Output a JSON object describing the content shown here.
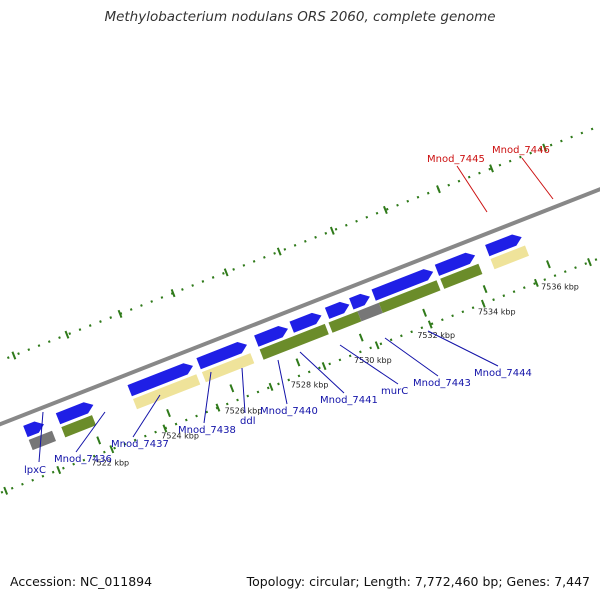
{
  "title": "Methylobacterium nodulans ORS 2060, complete genome",
  "accession_label": "Accession: NC_011894",
  "summary_label": "Topology: circular; Length: 7,772,460 bp; Genes: 7,447",
  "colors": {
    "forward_gene": "#1f1fe6",
    "reverse_gene": "#e60a0a",
    "cyan_feature": "#1ec8cc",
    "olive_feature": "#6b8c2a",
    "yellow_feature": "#efe39a",
    "gray_feature": "#777777",
    "backbone": "#888888",
    "label_blue": "#1212a8",
    "label_red": "#cc1010",
    "tick_green": "#2f7a1a"
  },
  "ticks": [
    {
      "kbp": 7522,
      "label": "7522 kbp"
    },
    {
      "kbp": 7524,
      "label": "7524 kbp"
    },
    {
      "kbp": 7526,
      "label": "7526 kbp"
    },
    {
      "kbp": 7528,
      "label": "7528 kbp"
    },
    {
      "kbp": 7530,
      "label": "7530 kbp"
    },
    {
      "kbp": 7532,
      "label": "7532 kbp"
    },
    {
      "kbp": 7534,
      "label": "7534 kbp"
    },
    {
      "kbp": 7536,
      "label": "7536 kbp"
    }
  ],
  "labels": [
    {
      "text": "lpxC",
      "color": "label_blue"
    },
    {
      "text": "Mnod_7436",
      "color": "label_blue"
    },
    {
      "text": "Mnod_7437",
      "color": "label_blue"
    },
    {
      "text": "Mnod_7438",
      "color": "label_blue"
    },
    {
      "text": "ddl",
      "color": "label_blue"
    },
    {
      "text": "Mnod_7440",
      "color": "label_blue"
    },
    {
      "text": "Mnod_7441",
      "color": "label_blue"
    },
    {
      "text": "murC",
      "color": "label_blue"
    },
    {
      "text": "Mnod_7443",
      "color": "label_blue"
    },
    {
      "text": "Mnod_7444",
      "color": "label_blue"
    },
    {
      "text": "Mnod_7445",
      "color": "label_red"
    },
    {
      "text": "Mnod_7446",
      "color": "label_red"
    }
  ]
}
